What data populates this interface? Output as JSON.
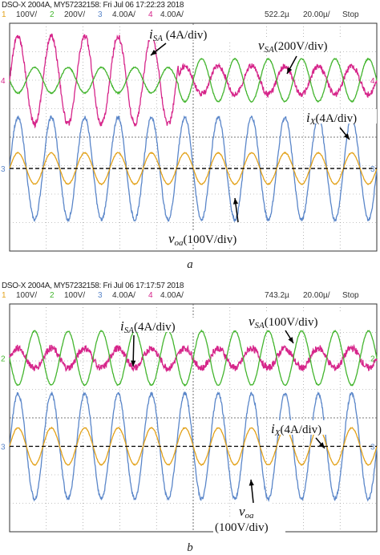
{
  "colors": {
    "ch1": "#e3a21a",
    "ch2": "#43b52e",
    "ch3": "#5a86c9",
    "ch4": "#d6258a",
    "grid": "#8a8a8a",
    "background": "#ffffff",
    "border": "#333333"
  },
  "chart_data": [
    {
      "type": "line",
      "caption": "a",
      "header": {
        "title": "DSO-X 2004A, MY57232158: Fri Jul 06 17:22:23 2018",
        "channels": [
          {
            "num": "1",
            "scale": "100V/"
          },
          {
            "num": "2",
            "scale": "200V/"
          },
          {
            "num": "3",
            "scale": "4.00A/"
          },
          {
            "num": "4",
            "scale": "4.00A/"
          }
        ],
        "delay": "522.2µ",
        "timebase": "20.00µ/",
        "status": "Stop"
      },
      "markers": [
        "4",
        "3"
      ],
      "xlim": [
        0,
        10
      ],
      "ylim": [
        -4,
        4
      ],
      "series": [
        {
          "channel": "4",
          "name": "i_SA",
          "color": "#d6258a",
          "center": 2,
          "amplitude_before": 1.55,
          "amplitude_after": 0.5,
          "change_at": 4.6,
          "cycles": 11,
          "phase": 0.0,
          "noise": 0.1
        },
        {
          "channel": "2",
          "name": "v_SA",
          "color": "#43b52e",
          "center": 2,
          "amplitude_before": 0.45,
          "amplitude_after": 0.75,
          "change_at": 4.6,
          "cycles": 11,
          "phase": 3.14159,
          "noise": 0.02
        },
        {
          "channel": "3",
          "name": "i_X",
          "color": "#5a86c9",
          "center": -1.1,
          "amplitude_before": 1.8,
          "amplitude_after": 1.8,
          "change_at": 10,
          "cycles": 11,
          "phase": 0.0,
          "noise": 0.06
        },
        {
          "channel": "1",
          "name": "v_oa",
          "color": "#e3a21a",
          "center": -1.1,
          "amplitude_before": 0.55,
          "amplitude_after": 0.55,
          "change_at": 10,
          "cycles": 11,
          "phase": 0.0,
          "noise": 0.015
        }
      ],
      "annotations": [
        {
          "main": "i",
          "sub": "SA",
          "rest": " (4A/div)"
        },
        {
          "main": "v",
          "sub": "SA",
          "rest": "(200V/div)"
        },
        {
          "main": "i",
          "sub": "X",
          "rest": "(4A/div)"
        },
        {
          "main": "v",
          "sub": "oa",
          "rest": "(100V/div)"
        }
      ]
    },
    {
      "type": "line",
      "caption": "b",
      "header": {
        "title": "DSO-X 2004A, MY57232158: Fri Jul 06 17:17:57 2018",
        "channels": [
          {
            "num": "1",
            "scale": "100V/"
          },
          {
            "num": "2",
            "scale": "100V/"
          },
          {
            "num": "3",
            "scale": "4.00A/"
          },
          {
            "num": "4",
            "scale": "4.00A/"
          }
        ],
        "delay": "743.2µ",
        "timebase": "20.00µ/",
        "status": "Stop"
      },
      "markers": [
        "2",
        "3"
      ],
      "xlim": [
        0,
        10
      ],
      "ylim": [
        -4,
        4
      ],
      "series": [
        {
          "channel": "4",
          "name": "i_SA",
          "color": "#d6258a",
          "center": 2.1,
          "amplitude_before": 0.35,
          "amplitude_after": 0.35,
          "change_at": 10,
          "cycles": 11,
          "phase": 0.0,
          "noise": 0.12
        },
        {
          "channel": "2",
          "name": "v_SA",
          "color": "#43b52e",
          "center": 2.1,
          "amplitude_before": 0.95,
          "amplitude_after": 0.95,
          "change_at": 10,
          "cycles": 11,
          "phase": 3.14159,
          "noise": 0.02
        },
        {
          "channel": "3",
          "name": "i_X",
          "color": "#5a86c9",
          "center": -1.0,
          "amplitude_before": 1.85,
          "amplitude_after": 1.85,
          "change_at": 10,
          "cycles": 11,
          "phase": 0.0,
          "noise": 0.06
        },
        {
          "channel": "1",
          "name": "v_oa",
          "color": "#e3a21a",
          "center": -1.0,
          "amplitude_before": 0.65,
          "amplitude_after": 0.65,
          "change_at": 10,
          "cycles": 11,
          "phase": 0.0,
          "noise": 0.015
        }
      ],
      "annotations": [
        {
          "main": "i",
          "sub": "SA",
          "rest": "(4A/div)"
        },
        {
          "main": "v",
          "sub": "SA",
          "rest": "(100V/div)"
        },
        {
          "main": "i",
          "sub": "X",
          "rest": "(4A/div)"
        },
        {
          "main": "v",
          "sub": "oa",
          "rest": ""
        },
        {
          "main": "",
          "sub": "",
          "rest": "(100V/div)"
        }
      ]
    }
  ]
}
